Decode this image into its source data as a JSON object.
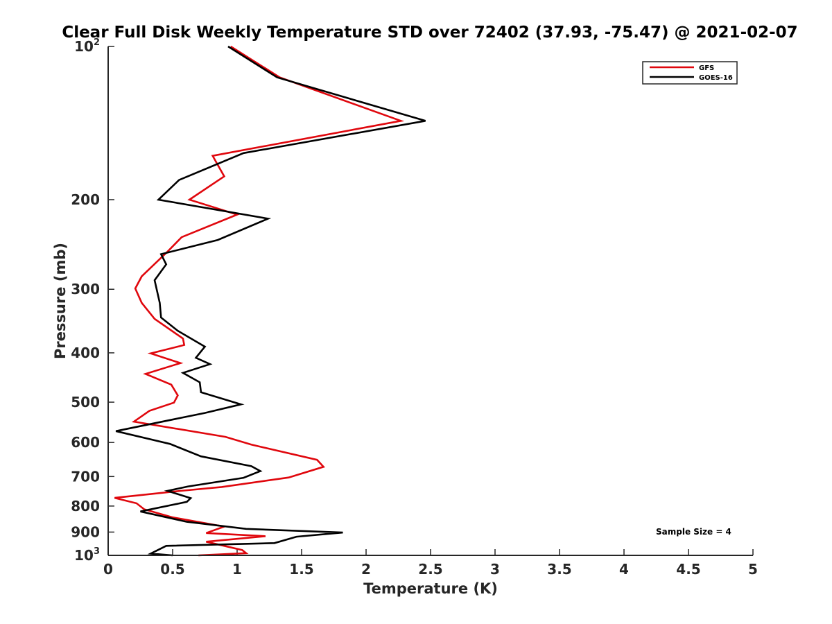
{
  "chart_data": {
    "type": "line",
    "title": "Clear Full Disk Weekly Temperature STD over 72402 (37.93, -75.47) @ 2021-02-07",
    "xlabel": "Temperature (K)",
    "ylabel": "Pressure (mb)",
    "xlim": [
      0,
      5
    ],
    "ylim": [
      1000,
      100
    ],
    "yscale": "log",
    "xticks": [
      0,
      0.5,
      1,
      1.5,
      2,
      2.5,
      3,
      3.5,
      4,
      4.5,
      5
    ],
    "xtick_labels": [
      "0",
      "0.5",
      "1",
      "1.5",
      "2",
      "2.5",
      "3",
      "3.5",
      "4",
      "4.5",
      "5"
    ],
    "yticks": [
      {
        "value": 100,
        "base": "10",
        "exp": "2"
      },
      {
        "value": 200,
        "label": "200"
      },
      {
        "value": 300,
        "label": "300"
      },
      {
        "value": 400,
        "label": "400"
      },
      {
        "value": 500,
        "label": "500"
      },
      {
        "value": 600,
        "label": "600"
      },
      {
        "value": 700,
        "label": "700"
      },
      {
        "value": 800,
        "label": "800"
      },
      {
        "value": 900,
        "label": "900"
      },
      {
        "value": 1000,
        "base": "10",
        "exp": "3"
      }
    ],
    "legend_position": "top-right",
    "annotation": "Sample Size = 4",
    "series": [
      {
        "name": "GFS",
        "color": "#e0070d",
        "x": [
          0.95,
          1.33,
          2.27,
          0.81,
          0.9,
          0.63,
          1.0,
          0.57,
          0.46,
          0.26,
          0.21,
          0.26,
          0.36,
          0.58,
          0.59,
          0.33,
          0.56,
          0.29,
          0.49,
          0.54,
          0.51,
          0.32,
          0.2,
          0.91,
          1.11,
          1.62,
          1.67,
          1.4,
          0.88,
          0.56,
          0.05,
          0.22,
          0.28,
          0.5,
          0.9,
          0.76,
          1.22,
          0.76,
          1.04,
          1.07,
          0.7
        ],
        "y": [
          100,
          115,
          140,
          164,
          180,
          200,
          214,
          237,
          253,
          283,
          299,
          319,
          343,
          375,
          386,
          401,
          419,
          440,
          462,
          485,
          501,
          520,
          546,
          585,
          606,
          649,
          670,
          703,
          734,
          747,
          771,
          790,
          812,
          842,
          878,
          904,
          917,
          940,
          976,
          990,
          1000
        ]
      },
      {
        "name": "GOES-16",
        "color": "#000000",
        "x": [
          0.93,
          1.31,
          2.46,
          1.05,
          0.55,
          0.39,
          1.24,
          0.85,
          0.41,
          0.45,
          0.36,
          0.4,
          0.41,
          0.54,
          0.75,
          0.68,
          0.79,
          0.58,
          0.71,
          0.72,
          1.03,
          0.75,
          0.06,
          0.48,
          0.72,
          1.11,
          1.18,
          1.05,
          0.62,
          0.46,
          0.64,
          0.61,
          0.25,
          0.61,
          1.07,
          1.82,
          1.46,
          1.29,
          0.45,
          0.33,
          0.5
        ],
        "y": [
          100,
          115,
          140,
          162,
          183,
          200,
          218,
          240,
          256,
          268,
          288,
          319,
          341,
          362,
          389,
          409,
          421,
          438,
          457,
          478,
          505,
          525,
          570,
          604,
          639,
          668,
          683,
          704,
          732,
          747,
          772,
          785,
          820,
          859,
          887,
          902,
          919,
          946,
          958,
          992,
          1000
        ]
      }
    ]
  }
}
